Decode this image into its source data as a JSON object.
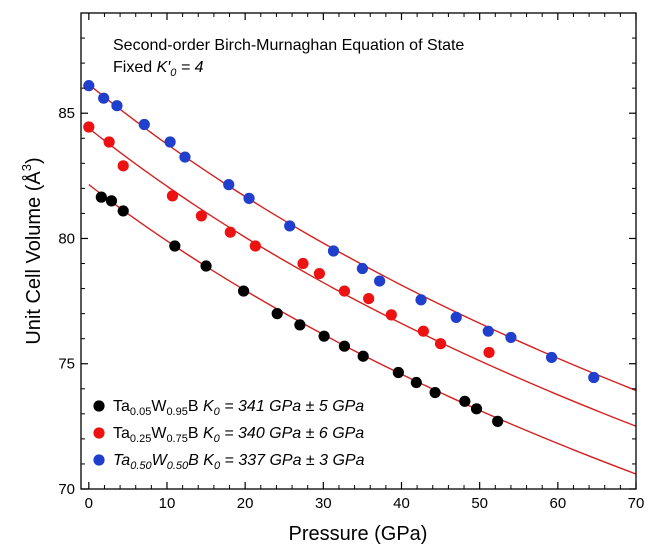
{
  "chart_data": {
    "type": "scatter",
    "annotation_line1": "Second-order Birch-Murnaghan Equation of State",
    "annotation_line2_prefix": "Fixed ",
    "annotation_line2_K": "K′",
    "annotation_line2_sub": "0",
    "annotation_line2_suffix": " = 4",
    "xlabel": "Pressure (GPa)",
    "ylabel_main": "Unit Cell Volume (Å",
    "ylabel_sup": "3",
    "ylabel_end": ")",
    "xlim": [
      -1,
      70
    ],
    "ylim": [
      70,
      89
    ],
    "xticks": [
      0,
      10,
      20,
      30,
      40,
      50,
      60,
      70
    ],
    "yticks": [
      70,
      75,
      80,
      85
    ],
    "grid": false,
    "legend_position": "bottom-left",
    "fit_color": "#d42020",
    "series": [
      {
        "color": "#000000",
        "legend_parts": [
          {
            "t": "Ta",
            "s": "normal",
            "i": false
          },
          {
            "t": "0.05",
            "s": "sub",
            "i": false
          },
          {
            "t": "W",
            "s": "normal",
            "i": false
          },
          {
            "t": "0.95",
            "s": "sub",
            "i": false
          },
          {
            "t": "B ",
            "s": "normal",
            "i": false
          },
          {
            "t": "K",
            "s": "normal",
            "i": true
          },
          {
            "t": "0",
            "s": "sub",
            "i": true
          },
          {
            "t": " = 341 GPa ± 5 GPa",
            "s": "normal",
            "i": true
          }
        ],
        "fit": {
          "V0": 82.15,
          "K0": 341
        },
        "x": [
          1.6,
          2.9,
          4.4,
          11.0,
          15.0,
          19.8,
          24.1,
          27.0,
          30.1,
          32.7,
          35.1,
          39.6,
          41.9,
          44.3,
          48.1,
          49.6,
          52.3
        ],
        "y": [
          81.65,
          81.5,
          81.1,
          79.7,
          78.9,
          77.9,
          77.0,
          76.55,
          76.1,
          75.7,
          75.3,
          74.65,
          74.25,
          73.85,
          73.5,
          73.2,
          72.7
        ]
      },
      {
        "color": "#ee1111",
        "legend_parts": [
          {
            "t": "Ta",
            "s": "normal",
            "i": false
          },
          {
            "t": "0.25",
            "s": "sub",
            "i": false
          },
          {
            "t": "W",
            "s": "normal",
            "i": false
          },
          {
            "t": "0.75",
            "s": "sub",
            "i": false
          },
          {
            "t": "B ",
            "s": "normal",
            "i": false
          },
          {
            "t": "K",
            "s": "normal",
            "i": true
          },
          {
            "t": "0",
            "s": "sub",
            "i": true
          },
          {
            "t": " = 340 GPa ± 6 GPa",
            "s": "normal",
            "i": true
          }
        ],
        "fit": {
          "V0": 84.4,
          "K0": 340
        },
        "x": [
          0.0,
          2.6,
          4.4,
          10.7,
          14.4,
          18.1,
          21.3,
          27.4,
          29.5,
          32.7,
          35.8,
          38.7,
          42.8,
          45.0,
          51.2
        ],
        "y": [
          84.45,
          83.85,
          82.9,
          81.7,
          80.9,
          80.25,
          79.7,
          79.0,
          78.6,
          77.9,
          77.6,
          76.95,
          76.3,
          75.8,
          75.45
        ]
      },
      {
        "color": "#1f3fcc",
        "legend_parts": [
          {
            "t": "Ta",
            "s": "normal",
            "i": true
          },
          {
            "t": "0.50",
            "s": "sub",
            "i": true
          },
          {
            "t": "W",
            "s": "normal",
            "i": true
          },
          {
            "t": "0.50",
            "s": "sub",
            "i": true
          },
          {
            "t": "B ",
            "s": "normal",
            "i": true
          },
          {
            "t": "K",
            "s": "normal",
            "i": true
          },
          {
            "t": "0",
            "s": "sub",
            "i": true
          },
          {
            "t": " = 337 GPa ± 3 GPa",
            "s": "normal",
            "i": true
          }
        ],
        "fit": {
          "V0": 86.15,
          "K0": 337
        },
        "x": [
          0.0,
          1.9,
          3.6,
          7.1,
          10.4,
          12.3,
          17.9,
          20.5,
          25.7,
          31.3,
          35.0,
          37.2,
          42.5,
          47.0,
          51.1,
          54.0,
          59.2,
          64.6
        ],
        "y": [
          86.1,
          85.6,
          85.3,
          84.55,
          83.85,
          83.25,
          82.15,
          81.6,
          80.5,
          79.5,
          78.8,
          78.3,
          77.55,
          76.85,
          76.3,
          76.05,
          75.25,
          74.45
        ]
      }
    ]
  }
}
